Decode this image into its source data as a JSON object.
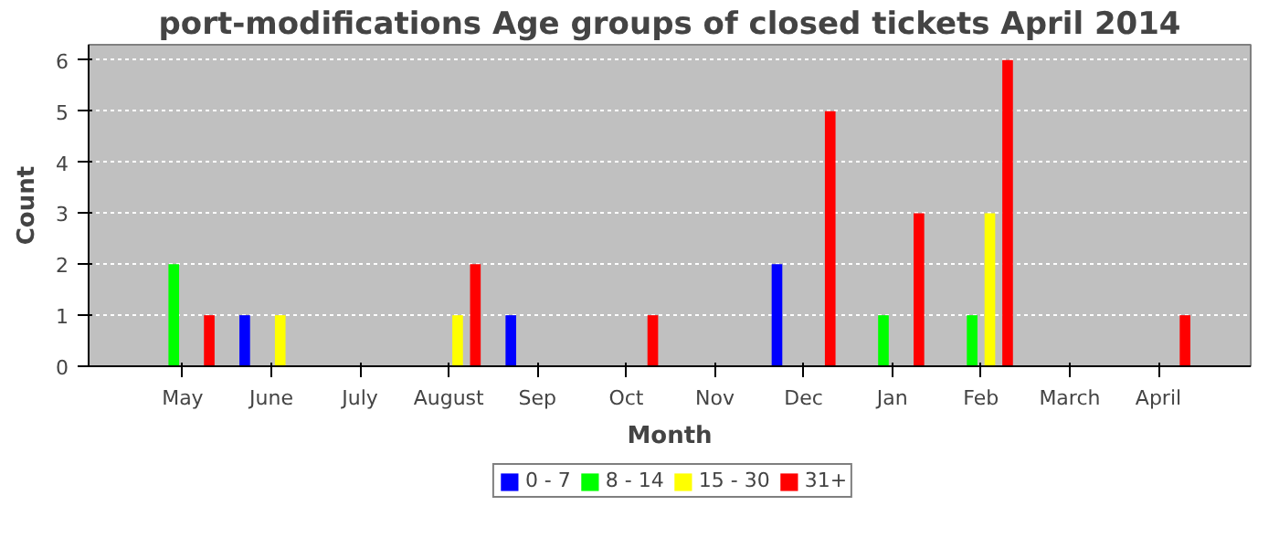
{
  "chart_data": {
    "type": "bar",
    "title": "port-modifications Age groups of closed tickets April 2014",
    "xlabel": "Month",
    "ylabel": "Count",
    "categories": [
      "May",
      "June",
      "July",
      "August",
      "Sep",
      "Oct",
      "Nov",
      "Dec",
      "Jan",
      "Feb",
      "March",
      "April"
    ],
    "series": [
      {
        "name": "0 - 7",
        "color": "#0000ff",
        "values": [
          0,
          1,
          0,
          0,
          1,
          0,
          0,
          2,
          0,
          0,
          0,
          0
        ]
      },
      {
        "name": "8 - 14",
        "color": "#00ff00",
        "values": [
          2,
          0,
          0,
          0,
          0,
          0,
          0,
          0,
          1,
          1,
          0,
          0
        ]
      },
      {
        "name": "15 - 30",
        "color": "#ffff00",
        "values": [
          0,
          1,
          0,
          1,
          0,
          0,
          0,
          0,
          0,
          3,
          0,
          0
        ]
      },
      {
        "name": "31+",
        "color": "#ff0000",
        "values": [
          1,
          0,
          0,
          2,
          0,
          1,
          0,
          5,
          3,
          6,
          0,
          1
        ]
      }
    ],
    "ylim": [
      0,
      6.3
    ],
    "yticks": [
      0,
      1,
      2,
      3,
      4,
      5,
      6
    ],
    "grid": "y",
    "legend": "bottom"
  }
}
